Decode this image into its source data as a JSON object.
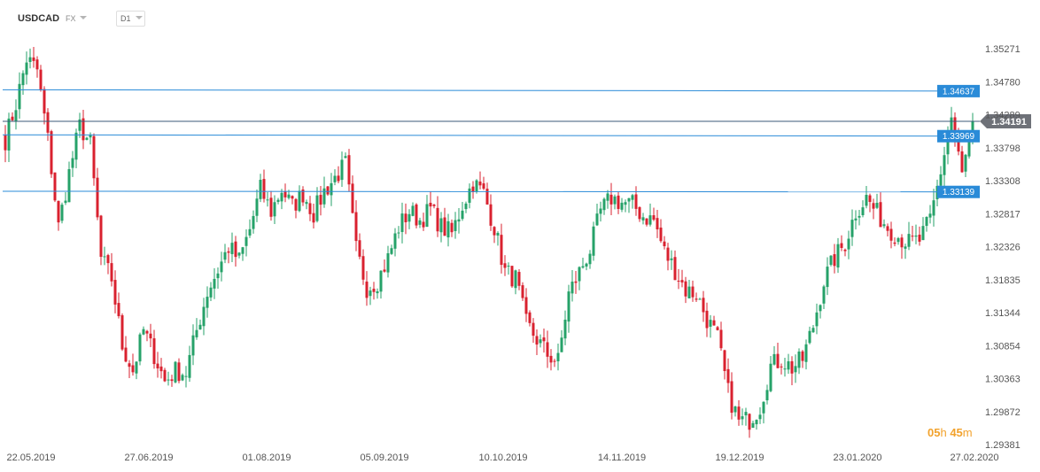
{
  "header": {
    "symbol": "USDCAD",
    "market": "FX",
    "timeframe": "D1"
  },
  "timer": {
    "hours": "05",
    "h": "h",
    "minutes": "45",
    "m": "m"
  },
  "colors": {
    "up": "#26a269",
    "down": "#d9212f",
    "level": "#2a8bd8",
    "current": "#6e7178",
    "timer": "#f2a22c"
  },
  "chart_data": {
    "type": "candlestick",
    "title": "",
    "xlabel": "",
    "ylabel": "",
    "ylim": [
      1.2938,
      1.3545
    ],
    "grid": false,
    "y_ticks": [
      "1.35271",
      "1.34780",
      "1.34289",
      "1.33798",
      "1.33308",
      "1.32817",
      "1.32326",
      "1.31835",
      "1.31344",
      "1.30854",
      "1.30363",
      "1.29872",
      "1.29381"
    ],
    "x_ticks": [
      "22.05.2019",
      "27.06.2019",
      "01.08.2019",
      "05.09.2019",
      "10.10.2019",
      "14.11.2019",
      "19.12.2019",
      "23.01.2020",
      "27.02.2020"
    ],
    "levels": [
      {
        "label": "1.34637",
        "start": 1.3466,
        "end": 1.3464
      },
      {
        "label": "1.33969",
        "start": 1.3399,
        "end": 1.3397
      },
      {
        "label": "1.33139",
        "start": 1.3315,
        "end": 1.3314
      }
    ],
    "current_price": {
      "label": "1.34191",
      "value": 1.34191
    },
    "anchors": [
      1.3392,
      1.3445,
      1.3512,
      1.3495,
      1.3392,
      1.3262,
      1.3342,
      1.3412,
      1.3385,
      1.3215,
      1.3185,
      1.3085,
      1.3048,
      1.3108,
      1.3072,
      1.3032,
      1.3048,
      1.3045,
      1.3108,
      1.3165,
      1.3198,
      1.3232,
      1.3212,
      1.3258,
      1.3318,
      1.3285,
      1.3318,
      1.3292,
      1.3312,
      1.3282,
      1.3315,
      1.3335,
      1.3355,
      1.3228,
      1.3172,
      1.3182,
      1.3215,
      1.3262,
      1.3285,
      1.3272,
      1.3288,
      1.3262,
      1.3252,
      1.3295,
      1.3328,
      1.3312,
      1.3262,
      1.3195,
      1.3185,
      1.3118,
      1.3095,
      1.3072,
      1.3062,
      1.3162,
      1.3195,
      1.3228,
      1.3285,
      1.3305,
      1.3298,
      1.3295,
      1.3278,
      1.3272,
      1.3225,
      1.3198,
      1.3168,
      1.3162,
      1.3125,
      1.3095,
      1.3015,
      1.2972,
      1.2975,
      1.2995,
      1.3055,
      1.3065,
      1.3052,
      1.3065,
      1.3115,
      1.3182,
      1.3215,
      1.3238,
      1.3285,
      1.3305,
      1.3282,
      1.3262,
      1.3248,
      1.3238,
      1.3242,
      1.3272,
      1.3345,
      1.3425,
      1.3338,
      1.3419
    ]
  }
}
